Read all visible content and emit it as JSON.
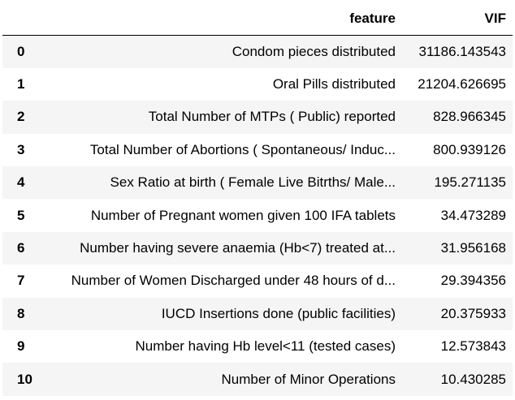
{
  "table": {
    "columns": [
      "",
      "feature",
      "VIF"
    ],
    "rows": [
      {
        "index": "0",
        "feature": "Condom pieces distributed",
        "vif": "31186.143543"
      },
      {
        "index": "1",
        "feature": "Oral Pills distributed",
        "vif": "21204.626695"
      },
      {
        "index": "2",
        "feature": "Total Number of MTPs ( Public) reported",
        "vif": "828.966345"
      },
      {
        "index": "3",
        "feature": "Total Number of Abortions ( Spontaneous/ Induc...",
        "vif": "800.939126"
      },
      {
        "index": "4",
        "feature": "Sex Ratio at birth ( Female Live Bitrths/ Male...",
        "vif": "195.271135"
      },
      {
        "index": "5",
        "feature": "Number of Pregnant women given 100 IFA tablets",
        "vif": "34.473289"
      },
      {
        "index": "6",
        "feature": "Number having severe anaemia (Hb<7) treated at...",
        "vif": "31.956168"
      },
      {
        "index": "7",
        "feature": "Number of Women Discharged under 48 hours of d...",
        "vif": "29.394356"
      },
      {
        "index": "8",
        "feature": "IUCD Insertions done (public facilities)",
        "vif": "20.375933"
      },
      {
        "index": "9",
        "feature": "Number having Hb level<11 (tested cases)",
        "vif": "12.573843"
      },
      {
        "index": "10",
        "feature": "Number of Minor Operations",
        "vif": "10.430285"
      }
    ]
  }
}
